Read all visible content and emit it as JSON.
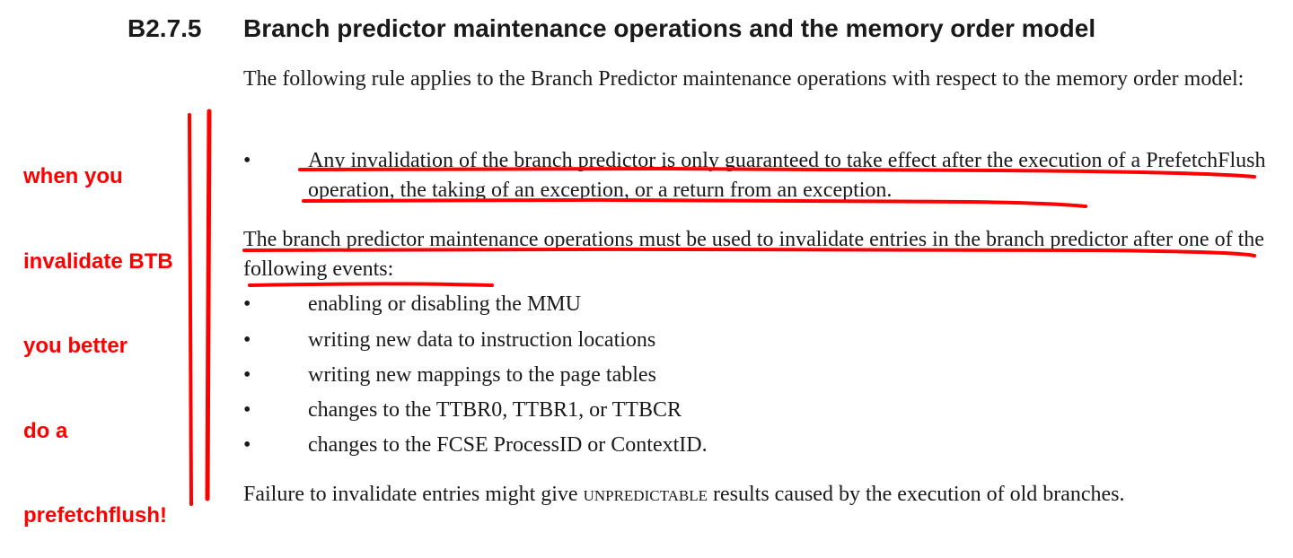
{
  "section": {
    "number": "B2.7.5",
    "title": "Branch predictor maintenance operations and the memory order model"
  },
  "intro": "The following rule applies to the Branch Predictor maintenance operations with respect to the memory order model:",
  "rule_bullet": {
    "bullet": "•",
    "text": "Any invalidation of the branch predictor is only guaranteed to take effect after the execution of a PrefetchFlush operation, the taking of an exception, or a return from an exception."
  },
  "events_intro": "The branch predictor maintenance operations must be used to invalidate entries in the branch predictor after one of the following events:",
  "events": [
    {
      "bullet": "•",
      "text": "enabling or disabling the MMU"
    },
    {
      "bullet": "•",
      "text": "writing new data to instruction locations"
    },
    {
      "bullet": "•",
      "text": "writing new mappings to the page tables"
    },
    {
      "bullet": "•",
      "text": "changes to the TTBR0, TTBR1, or TTBCR"
    },
    {
      "bullet": "•",
      "text": "changes to the FCSE ProcessID or ContextID."
    }
  ],
  "failure": {
    "before": "Failure to invalidate entries might give ",
    "keyword": "UNPREDICTABLE",
    "after": " results caused by the execution of old branches."
  },
  "annotation": {
    "lines": [
      "when you",
      "invalidate BTB",
      "you better",
      "do a",
      "prefetchflush!"
    ],
    "color": "#ff0000"
  }
}
